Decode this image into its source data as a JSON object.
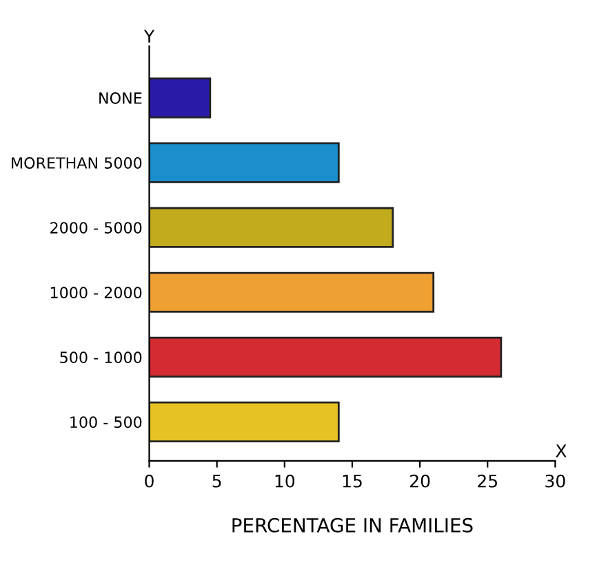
{
  "chart_data": {
    "type": "bar",
    "orientation": "horizontal",
    "xlabel": "PERCENTAGE IN FAMILIES",
    "ylabel": "Y",
    "categories": [
      "NONE",
      "MORETHAN 5000",
      "2000 - 5000",
      "1000 - 2000",
      "500 - 1000",
      "100 - 500"
    ],
    "values": [
      4.5,
      14,
      18,
      21,
      26,
      14
    ],
    "colors": [
      "#2a1aa8",
      "#1a8fcc",
      "#c2ab1c",
      "#eea032",
      "#d42a32",
      "#e6c224"
    ],
    "xlim": [
      0,
      30
    ],
    "xticks": [
      0,
      5,
      10,
      15,
      20,
      25,
      30
    ],
    "grid": false,
    "legend": false,
    "annotations": [
      "X"
    ]
  }
}
